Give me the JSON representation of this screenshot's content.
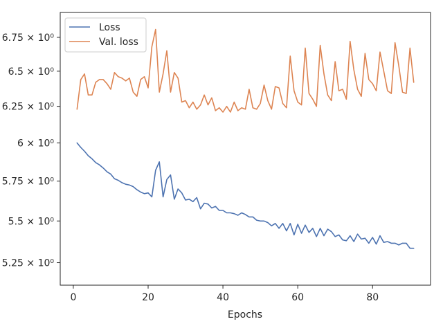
{
  "chart_data": {
    "type": "line",
    "xlabel": "Epochs",
    "ylabel": "",
    "yscale": "log",
    "xlim": [
      -3.5,
      95.5
    ],
    "ylim": [
      5.12,
      6.94
    ],
    "grid": false,
    "legend_position": "upper-left",
    "x_ticks": [
      0,
      20,
      40,
      60,
      80
    ],
    "x_tick_labels": [
      "0",
      "20",
      "40",
      "60",
      "80"
    ],
    "y_ticks": [
      5.25,
      5.5,
      5.75,
      6.0,
      6.25,
      6.5,
      6.75
    ],
    "y_tick_labels": [
      "5.25 × 10⁰",
      "5.5 × 10⁰",
      "5.75 × 10⁰",
      "6 × 10⁰",
      "6.25 × 10⁰",
      "6.5 × 10⁰",
      "6.75 × 10⁰"
    ],
    "series": [
      {
        "name": "Loss",
        "color": "#4c72b0",
        "x": [
          1,
          2,
          3,
          4,
          5,
          6,
          7,
          8,
          9,
          10,
          11,
          12,
          13,
          14,
          15,
          16,
          17,
          18,
          19,
          20,
          21,
          22,
          23,
          24,
          25,
          26,
          27,
          28,
          29,
          30,
          31,
          32,
          33,
          34,
          35,
          36,
          37,
          38,
          39,
          40,
          41,
          42,
          43,
          44,
          45,
          46,
          47,
          48,
          49,
          50,
          51,
          52,
          53,
          54,
          55,
          56,
          57,
          58,
          59,
          60,
          61,
          62,
          63,
          64,
          65,
          66,
          67,
          68,
          69,
          70,
          71,
          72,
          73,
          74,
          75,
          76,
          77,
          78,
          79,
          80,
          81,
          82,
          83,
          84,
          85,
          86,
          87,
          88,
          89,
          90,
          91
        ],
        "values": [
          6.0,
          5.97,
          5.945,
          5.915,
          5.895,
          5.87,
          5.855,
          5.835,
          5.81,
          5.795,
          5.765,
          5.755,
          5.74,
          5.73,
          5.725,
          5.715,
          5.695,
          5.68,
          5.67,
          5.675,
          5.65,
          5.82,
          5.875,
          5.65,
          5.76,
          5.79,
          5.635,
          5.7,
          5.675,
          5.63,
          5.635,
          5.62,
          5.645,
          5.575,
          5.61,
          5.605,
          5.58,
          5.59,
          5.565,
          5.565,
          5.55,
          5.55,
          5.545,
          5.535,
          5.55,
          5.54,
          5.525,
          5.525,
          5.505,
          5.5,
          5.5,
          5.49,
          5.47,
          5.485,
          5.455,
          5.485,
          5.44,
          5.485,
          5.415,
          5.48,
          5.425,
          5.475,
          5.43,
          5.455,
          5.405,
          5.455,
          5.41,
          5.45,
          5.435,
          5.405,
          5.415,
          5.385,
          5.38,
          5.41,
          5.375,
          5.42,
          5.39,
          5.395,
          5.365,
          5.4,
          5.36,
          5.41,
          5.37,
          5.375,
          5.365,
          5.365,
          5.355,
          5.365,
          5.365,
          5.335,
          5.335
        ]
      },
      {
        "name": "Val. loss",
        "color": "#dd8452",
        "x": [
          1,
          2,
          3,
          4,
          5,
          6,
          7,
          8,
          9,
          10,
          11,
          12,
          13,
          14,
          15,
          16,
          17,
          18,
          19,
          20,
          21,
          22,
          23,
          24,
          25,
          26,
          27,
          28,
          29,
          30,
          31,
          32,
          33,
          34,
          35,
          36,
          37,
          38,
          39,
          40,
          41,
          42,
          43,
          44,
          45,
          46,
          47,
          48,
          49,
          50,
          51,
          52,
          53,
          54,
          55,
          56,
          57,
          58,
          59,
          60,
          61,
          62,
          63,
          64,
          65,
          66,
          67,
          68,
          69,
          70,
          71,
          72,
          73,
          74,
          75,
          76,
          77,
          78,
          79,
          80,
          81,
          82,
          83,
          84,
          85,
          86,
          87,
          88,
          89,
          90,
          91
        ],
        "values": [
          6.23,
          6.44,
          6.48,
          6.33,
          6.33,
          6.42,
          6.44,
          6.44,
          6.41,
          6.37,
          6.49,
          6.46,
          6.45,
          6.43,
          6.45,
          6.35,
          6.32,
          6.44,
          6.46,
          6.38,
          6.68,
          6.81,
          6.35,
          6.48,
          6.65,
          6.35,
          6.49,
          6.45,
          6.28,
          6.29,
          6.24,
          6.28,
          6.23,
          6.26,
          6.33,
          6.26,
          6.31,
          6.22,
          6.24,
          6.21,
          6.25,
          6.21,
          6.28,
          6.22,
          6.24,
          6.23,
          6.37,
          6.24,
          6.23,
          6.27,
          6.4,
          6.29,
          6.23,
          6.39,
          6.38,
          6.27,
          6.24,
          6.61,
          6.36,
          6.28,
          6.26,
          6.67,
          6.34,
          6.3,
          6.25,
          6.69,
          6.48,
          6.33,
          6.29,
          6.57,
          6.36,
          6.37,
          6.3,
          6.72,
          6.51,
          6.37,
          6.32,
          6.63,
          6.44,
          6.41,
          6.36,
          6.64,
          6.5,
          6.36,
          6.34,
          6.71,
          6.54,
          6.35,
          6.34,
          6.67,
          6.42
        ]
      }
    ]
  }
}
